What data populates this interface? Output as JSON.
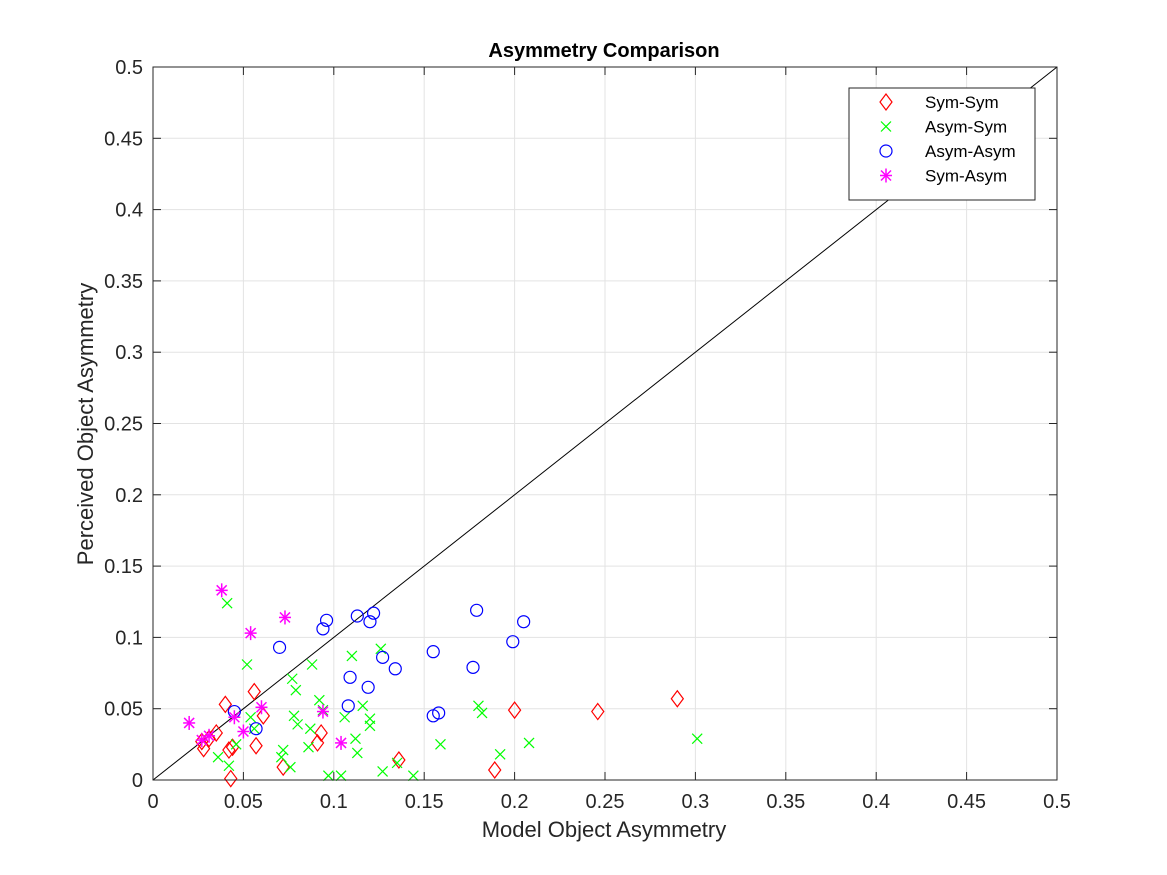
{
  "chart_data": {
    "type": "scatter",
    "title": "Asymmetry Comparison",
    "xlabel": "Model Object Asymmetry",
    "ylabel": "Perceived Object Asymmetry",
    "xlim": [
      0,
      0.5
    ],
    "ylim": [
      0,
      0.5
    ],
    "xticks": [
      0,
      0.05,
      0.1,
      0.15,
      0.2,
      0.25,
      0.3,
      0.35,
      0.4,
      0.45,
      0.5
    ],
    "yticks": [
      0,
      0.05,
      0.1,
      0.15,
      0.2,
      0.25,
      0.3,
      0.35,
      0.4,
      0.45,
      0.5
    ],
    "xtick_labels": [
      "0",
      "0.05",
      "0.1",
      "0.15",
      "0.2",
      "0.25",
      "0.3",
      "0.35",
      "0.4",
      "0.45",
      "0.5"
    ],
    "ytick_labels": [
      "0",
      "0.05",
      "0.1",
      "0.15",
      "0.2",
      "0.25",
      "0.3",
      "0.35",
      "0.4",
      "0.45",
      "0.5"
    ],
    "grid": true,
    "legend_position": "top-right",
    "reference_line": {
      "x": [
        0,
        0.5
      ],
      "y": [
        0,
        0.5
      ],
      "color": "#000000"
    },
    "series": [
      {
        "name": "Sym-Sym",
        "marker": "diamond",
        "color": "#ff0000",
        "points": [
          [
            0.027,
            0.027
          ],
          [
            0.028,
            0.022
          ],
          [
            0.031,
            0.029
          ],
          [
            0.035,
            0.033
          ],
          [
            0.04,
            0.053
          ],
          [
            0.042,
            0.021
          ],
          [
            0.044,
            0.023
          ],
          [
            0.043,
            0.001
          ],
          [
            0.056,
            0.062
          ],
          [
            0.057,
            0.024
          ],
          [
            0.061,
            0.045
          ],
          [
            0.072,
            0.009
          ],
          [
            0.091,
            0.026
          ],
          [
            0.093,
            0.033
          ],
          [
            0.136,
            0.014
          ],
          [
            0.189,
            0.007
          ],
          [
            0.2,
            0.049
          ],
          [
            0.246,
            0.048
          ],
          [
            0.29,
            0.057
          ]
        ]
      },
      {
        "name": "Asym-Sym",
        "marker": "x",
        "color": "#00ff00",
        "points": [
          [
            0.036,
            0.016
          ],
          [
            0.041,
            0.124
          ],
          [
            0.042,
            0.01
          ],
          [
            0.046,
            0.025
          ],
          [
            0.052,
            0.081
          ],
          [
            0.054,
            0.044
          ],
          [
            0.056,
            0.036
          ],
          [
            0.071,
            0.016
          ],
          [
            0.072,
            0.021
          ],
          [
            0.076,
            0.009
          ],
          [
            0.077,
            0.071
          ],
          [
            0.078,
            0.045
          ],
          [
            0.079,
            0.063
          ],
          [
            0.08,
            0.039
          ],
          [
            0.086,
            0.023
          ],
          [
            0.087,
            0.036
          ],
          [
            0.088,
            0.081
          ],
          [
            0.092,
            0.056
          ],
          [
            0.094,
            0.049
          ],
          [
            0.097,
            0.003
          ],
          [
            0.104,
            0.003
          ],
          [
            0.106,
            0.044
          ],
          [
            0.11,
            0.087
          ],
          [
            0.112,
            0.029
          ],
          [
            0.113,
            0.019
          ],
          [
            0.116,
            0.052
          ],
          [
            0.12,
            0.043
          ],
          [
            0.12,
            0.038
          ],
          [
            0.126,
            0.092
          ],
          [
            0.127,
            0.006
          ],
          [
            0.135,
            0.012
          ],
          [
            0.144,
            0.003
          ],
          [
            0.159,
            0.025
          ],
          [
            0.18,
            0.052
          ],
          [
            0.182,
            0.047
          ],
          [
            0.192,
            0.018
          ],
          [
            0.208,
            0.026
          ],
          [
            0.301,
            0.029
          ]
        ]
      },
      {
        "name": "Asym-Asym",
        "marker": "circle",
        "color": "#0000ff",
        "points": [
          [
            0.045,
            0.048
          ],
          [
            0.057,
            0.036
          ],
          [
            0.07,
            0.093
          ],
          [
            0.094,
            0.106
          ],
          [
            0.096,
            0.112
          ],
          [
            0.108,
            0.052
          ],
          [
            0.109,
            0.072
          ],
          [
            0.113,
            0.115
          ],
          [
            0.119,
            0.065
          ],
          [
            0.12,
            0.111
          ],
          [
            0.122,
            0.117
          ],
          [
            0.127,
            0.086
          ],
          [
            0.134,
            0.078
          ],
          [
            0.155,
            0.09
          ],
          [
            0.155,
            0.045
          ],
          [
            0.158,
            0.047
          ],
          [
            0.177,
            0.079
          ],
          [
            0.179,
            0.119
          ],
          [
            0.199,
            0.097
          ],
          [
            0.205,
            0.111
          ]
        ]
      },
      {
        "name": "Sym-Asym",
        "marker": "asterisk",
        "color": "#ff00ff",
        "points": [
          [
            0.02,
            0.04
          ],
          [
            0.027,
            0.028
          ],
          [
            0.031,
            0.031
          ],
          [
            0.038,
            0.133
          ],
          [
            0.045,
            0.044
          ],
          [
            0.05,
            0.034
          ],
          [
            0.054,
            0.103
          ],
          [
            0.06,
            0.051
          ],
          [
            0.073,
            0.114
          ],
          [
            0.094,
            0.048
          ],
          [
            0.104,
            0.026
          ]
        ]
      }
    ]
  }
}
